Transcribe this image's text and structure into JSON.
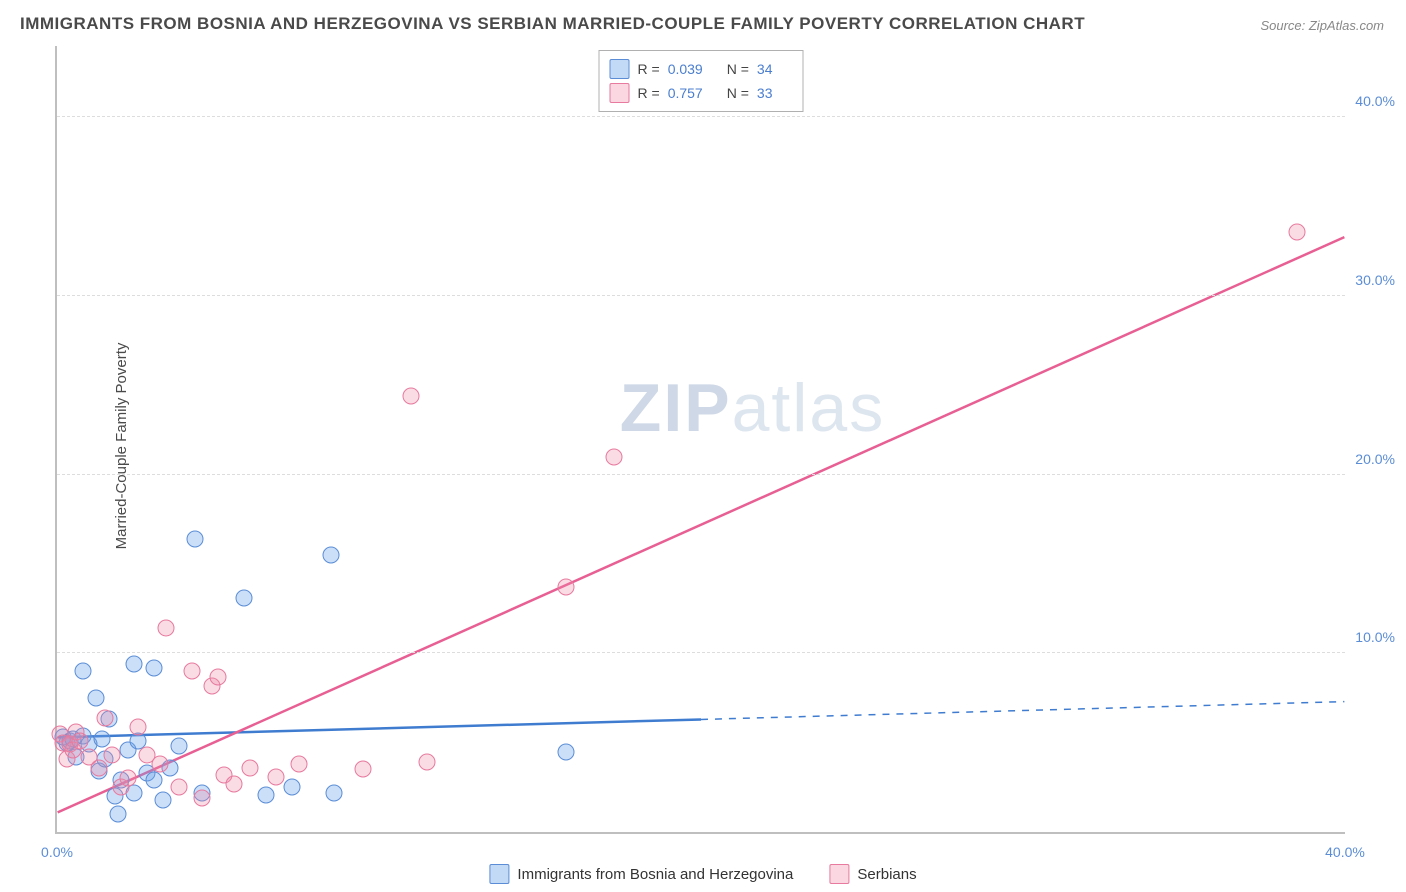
{
  "title": "IMMIGRANTS FROM BOSNIA AND HERZEGOVINA VS SERBIAN MARRIED-COUPLE FAMILY POVERTY CORRELATION CHART",
  "source": "Source: ZipAtlas.com",
  "ylabel": "Married-Couple Family Poverty",
  "watermark_prefix": "ZIP",
  "watermark_suffix": "atlas",
  "chart": {
    "type": "scatter",
    "xlim": [
      0,
      40
    ],
    "ylim": [
      0,
      44
    ],
    "yticks": [
      {
        "v": 10,
        "label": "10.0%"
      },
      {
        "v": 20,
        "label": "20.0%"
      },
      {
        "v": 30,
        "label": "30.0%"
      },
      {
        "v": 40,
        "label": "40.0%"
      }
    ],
    "xticks": [
      {
        "v": 0,
        "label": "0.0%"
      },
      {
        "v": 40,
        "label": "40.0%"
      }
    ],
    "background_color": "#ffffff",
    "grid_color": "#dddddd",
    "axis_color": "#bfbfbf",
    "tick_color": "#5b8dd6",
    "series": [
      {
        "name": "Immigrants from Bosnia and Herzegovina",
        "fill": "rgba(106,163,234,0.35)",
        "stroke": "#5b8dd6",
        "marker_size": 17,
        "points": [
          [
            0.2,
            5.3
          ],
          [
            0.3,
            5.0
          ],
          [
            0.4,
            5.1
          ],
          [
            0.5,
            5.2
          ],
          [
            0.6,
            4.2
          ],
          [
            0.8,
            5.4
          ],
          [
            0.8,
            9.0
          ],
          [
            1.0,
            4.9
          ],
          [
            1.2,
            7.5
          ],
          [
            1.3,
            3.4
          ],
          [
            1.4,
            5.2
          ],
          [
            1.5,
            4.1
          ],
          [
            1.6,
            6.3
          ],
          [
            1.8,
            2.0
          ],
          [
            1.9,
            1.0
          ],
          [
            2.0,
            2.9
          ],
          [
            2.2,
            4.6
          ],
          [
            2.4,
            9.4
          ],
          [
            2.4,
            2.2
          ],
          [
            2.5,
            5.1
          ],
          [
            2.8,
            3.3
          ],
          [
            3.0,
            9.2
          ],
          [
            3.0,
            2.9
          ],
          [
            3.3,
            1.8
          ],
          [
            3.5,
            3.6
          ],
          [
            3.8,
            4.8
          ],
          [
            4.3,
            16.4
          ],
          [
            4.5,
            2.2
          ],
          [
            5.8,
            13.1
          ],
          [
            6.5,
            2.1
          ],
          [
            7.3,
            2.5
          ],
          [
            8.5,
            15.5
          ],
          [
            8.6,
            2.2
          ],
          [
            15.8,
            4.5
          ]
        ],
        "trend": {
          "y_start": 5.3,
          "y_end": 7.3,
          "x_solid_end": 20,
          "color": "#3f7cd0",
          "width": 2.5
        }
      },
      {
        "name": "Serbians",
        "fill": "rgba(240,140,170,0.30)",
        "stroke": "#e77a9e",
        "marker_size": 17,
        "points": [
          [
            0.1,
            5.5
          ],
          [
            0.2,
            5.0
          ],
          [
            0.3,
            4.1
          ],
          [
            0.4,
            4.9
          ],
          [
            0.5,
            4.6
          ],
          [
            0.6,
            5.6
          ],
          [
            0.7,
            5.1
          ],
          [
            1.0,
            4.2
          ],
          [
            1.3,
            3.6
          ],
          [
            1.5,
            6.4
          ],
          [
            1.7,
            4.3
          ],
          [
            2.0,
            2.5
          ],
          [
            2.2,
            3.0
          ],
          [
            2.5,
            5.9
          ],
          [
            2.8,
            4.3
          ],
          [
            3.2,
            3.8
          ],
          [
            3.4,
            11.4
          ],
          [
            3.8,
            2.5
          ],
          [
            4.2,
            9.0
          ],
          [
            4.5,
            1.9
          ],
          [
            4.8,
            8.2
          ],
          [
            5.0,
            8.7
          ],
          [
            5.2,
            3.2
          ],
          [
            5.5,
            2.7
          ],
          [
            6.0,
            3.6
          ],
          [
            6.8,
            3.1
          ],
          [
            7.5,
            3.8
          ],
          [
            9.5,
            3.5
          ],
          [
            11.0,
            24.4
          ],
          [
            11.5,
            3.9
          ],
          [
            15.8,
            13.7
          ],
          [
            17.3,
            21.0
          ],
          [
            38.5,
            33.6
          ]
        ],
        "trend": {
          "y_start": 1.1,
          "y_end": 33.3,
          "x_solid_end": 40,
          "color": "#e85f93",
          "width": 2.5
        }
      }
    ],
    "stat_legend": [
      {
        "swatch": "blue",
        "r_label": "R =",
        "r": "0.039",
        "n_label": "N =",
        "n": "34"
      },
      {
        "swatch": "pink",
        "r_label": "R =",
        "r": "0.757",
        "n_label": "N =",
        "n": "33"
      }
    ]
  }
}
